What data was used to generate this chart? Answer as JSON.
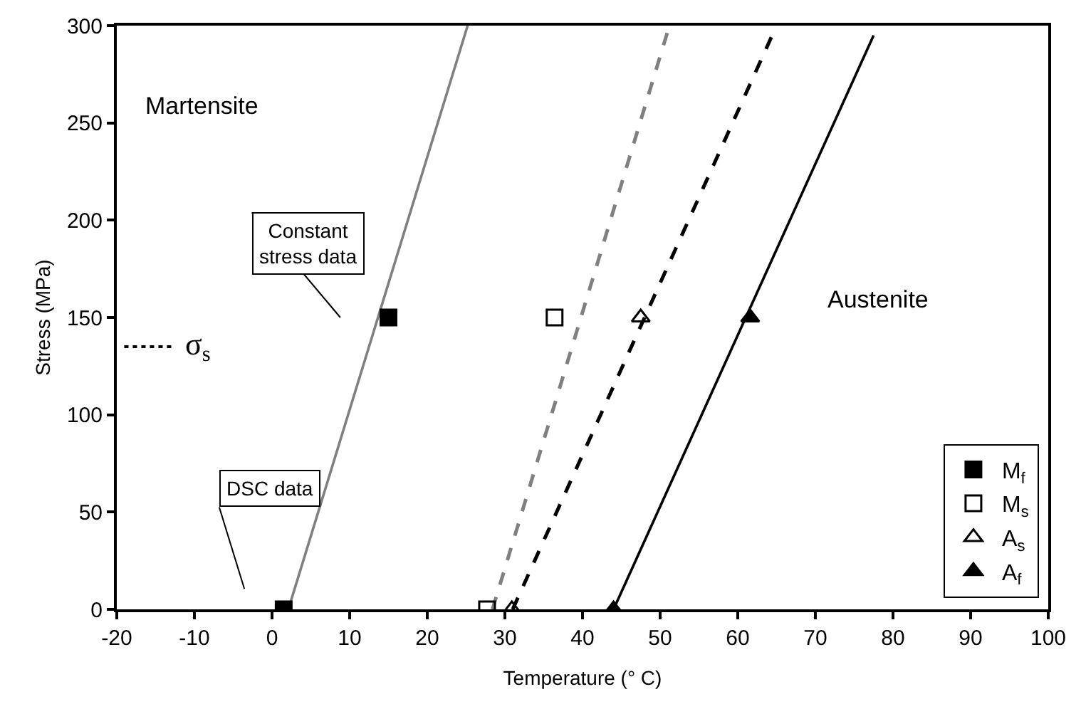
{
  "chart_data": {
    "type": "scatter",
    "xlabel": "Temperature (° C)",
    "ylabel": "Stress (MPa)",
    "xlim": [
      -20,
      100
    ],
    "xticks": [
      -20,
      -10,
      0,
      10,
      20,
      30,
      40,
      50,
      60,
      70,
      80,
      90,
      100
    ],
    "ylim": [
      0,
      300
    ],
    "yticks": [
      0,
      50,
      100,
      150,
      200,
      250,
      300
    ],
    "grid": false,
    "legend": "bottom right",
    "series": [
      {
        "name": "M$_{f}$",
        "marker": "square",
        "color": "#000000",
        "x": [
          1.5,
          15
        ],
        "values": [
          0,
          150
        ]
      },
      {
        "name": "M$_{s}$",
        "marker": "square-open",
        "color": "#000000",
        "x": [
          27.7,
          36.4
        ],
        "values": [
          0,
          150
        ]
      },
      {
        "name": "A$_{s}$",
        "marker": "triangle-open",
        "color": "#000000",
        "x": [
          30.9,
          47.5
        ],
        "values": [
          0,
          150
        ]
      },
      {
        "name": "A$_{f}$",
        "marker": "triangle",
        "color": "#000000",
        "x": [
          44,
          61.6
        ],
        "values": [
          0,
          150
        ]
      },
      {
        "type": "line",
        "line_style": "solid",
        "color": "#808080",
        "x": [
          2.1,
          25.2
        ],
        "values": [
          0,
          300
        ]
      },
      {
        "type": "line",
        "line_style": "dashed",
        "color": "#808080",
        "x": [
          28.4,
          51.2
        ],
        "values": [
          0,
          300
        ]
      },
      {
        "type": "line",
        "line_style": "dashed",
        "color": "#000000",
        "x": [
          31,
          65
        ],
        "values": [
          0,
          300
        ]
      },
      {
        "type": "line",
        "line_style": "solid",
        "color": "#000000",
        "x": [
          44,
          77.5
        ],
        "values": [
          0,
          295
        ]
      }
    ],
    "ref_lines": [
      {
        "axis": "y",
        "value": 135,
        "label": "σ$_{s}$",
        "line_style": "dotted",
        "color": "#000000"
      }
    ],
    "annotations": [
      "Martensite",
      "Austenite",
      "Constant stress data",
      "DSC data"
    ]
  }
}
